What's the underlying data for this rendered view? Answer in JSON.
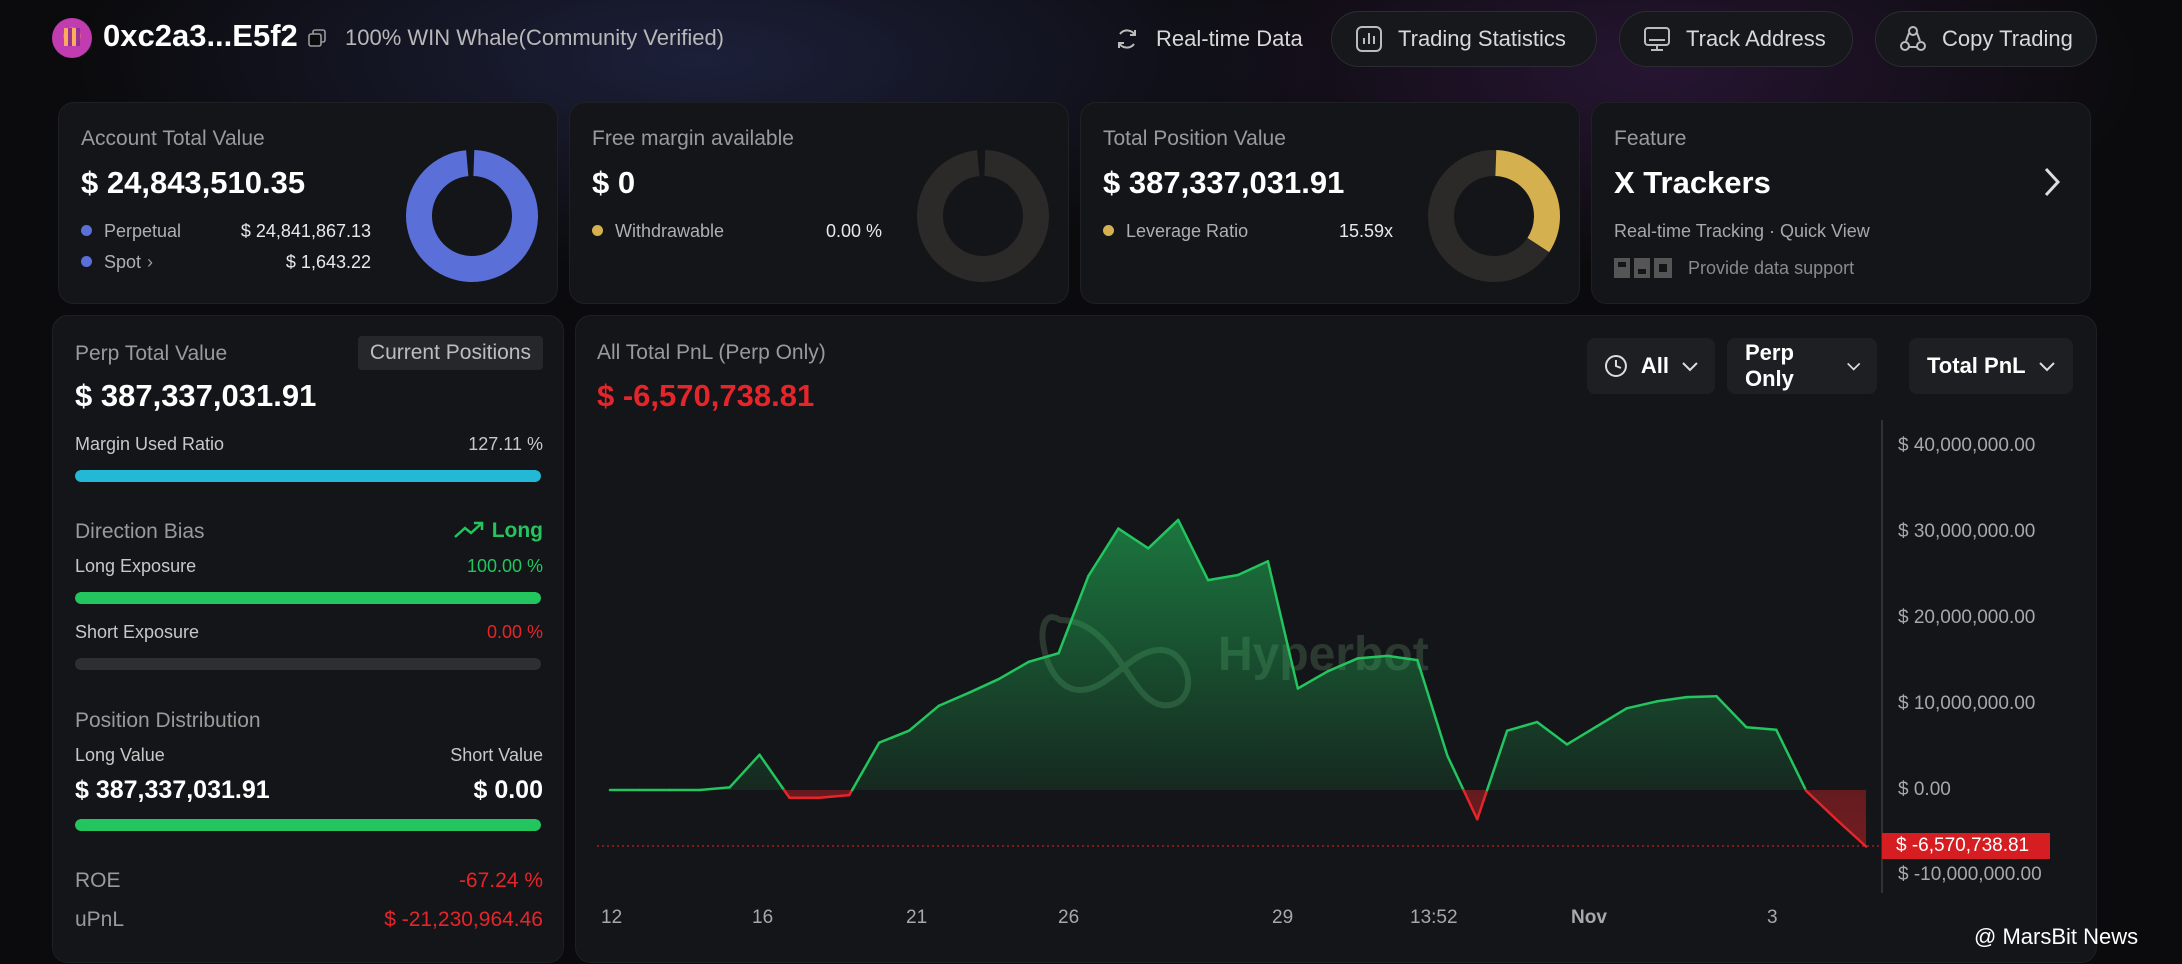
{
  "header": {
    "address": "0xc2a3...E5f2",
    "badge": "100% WIN Whale(Community Verified)",
    "realtime_label": "Real-time Data",
    "trading_stats_label": "Trading Statistics",
    "track_address_label": "Track Address",
    "copy_trading_label": "Copy Trading"
  },
  "cards": {
    "account": {
      "title": "Account Total Value",
      "value": "$ 24,843,510.35",
      "rows": [
        {
          "label": "Perpetual",
          "value": "$ 24,841,867.13"
        },
        {
          "label": "Spot",
          "value": "$ 1,643.22"
        }
      ],
      "color": "#5b6fd8"
    },
    "margin": {
      "title": "Free margin available",
      "value": "$ 0",
      "row_label": "Withdrawable",
      "row_value": "0.00 %",
      "color": "#d4b04e"
    },
    "position": {
      "title": "Total Position Value",
      "value": "$ 387,337,031.91",
      "row_label": "Leverage Ratio",
      "row_value": "15.59x",
      "color": "#d4b04e"
    },
    "feature": {
      "title": "Feature",
      "name": "X Trackers",
      "subtitle": "Real-time Tracking · Quick View",
      "support": "Provide data support"
    }
  },
  "left": {
    "perp_title": "Perp Total Value",
    "current_positions": "Current Positions",
    "perp_value": "$ 387,337,031.91",
    "margin_used_label": "Margin Used Ratio",
    "margin_used_value": "127.11 %",
    "margin_used_fraction": 1.0,
    "direction_label": "Direction Bias",
    "direction_value": "Long",
    "long_exposure_label": "Long Exposure",
    "long_exposure_value": "100.00 %",
    "long_exposure_fraction": 1.0,
    "short_exposure_label": "Short Exposure",
    "short_exposure_value": "0.00 %",
    "short_exposure_fraction": 0.0,
    "distribution_label": "Position Distribution",
    "long_value_label": "Long Value",
    "short_value_label": "Short Value",
    "long_value": "$ 387,337,031.91",
    "short_value": "$ 0.00",
    "roe_label": "ROE",
    "roe_value": "-67.24 %",
    "upnl_label": "uPnL",
    "upnl_value": "$ -21,230,964.46",
    "colors": {
      "cyan": "#22b8d6",
      "green": "#22c55e",
      "red": "#e5252a"
    }
  },
  "chart_panel": {
    "title": "All Total PnL (Perp Only)",
    "value": "$ -6,570,738.81",
    "dropdowns": {
      "period": "All",
      "scope": "Perp Only",
      "metric": "Total PnL"
    },
    "current_marker": "$ -6,570,738.81",
    "watermark": "Hyperbot"
  },
  "chart_data": {
    "type": "area",
    "title": "All Total PnL (Perp Only)",
    "y_ticks": [
      "$ 40,000,000.00",
      "$ 30,000,000.00",
      "$ 20,000,000.00",
      "$ 10,000,000.00",
      "$ 0.00",
      "$ -10,000,000.00"
    ],
    "ylim": [
      -10000000,
      40000000
    ],
    "x_ticks": [
      "12",
      "16",
      "21",
      "26",
      "29",
      "13:52",
      "Nov",
      "3"
    ],
    "series": [
      {
        "values": [
          0,
          0,
          0,
          0,
          300000,
          4100000,
          -900000,
          -900000,
          -600000,
          5500000,
          6900000,
          9800000,
          11300000,
          12900000,
          14900000,
          15900000,
          24900000,
          30400000,
          28100000,
          31400000,
          24400000,
          25000000,
          26600000,
          11800000,
          13800000,
          15300000,
          15600000,
          15100000,
          4000000,
          -3400000,
          6900000,
          7900000,
          5300000,
          7400000,
          9500000,
          10300000,
          10800000,
          10900000,
          7300000,
          7000000,
          -100000,
          -3400000,
          -6570738.81
        ]
      }
    ],
    "grid": false,
    "colors": {
      "positive": "#22c55e",
      "negative": "#e5252a"
    }
  },
  "footer": {
    "watermark": "@ MarsBit News"
  }
}
